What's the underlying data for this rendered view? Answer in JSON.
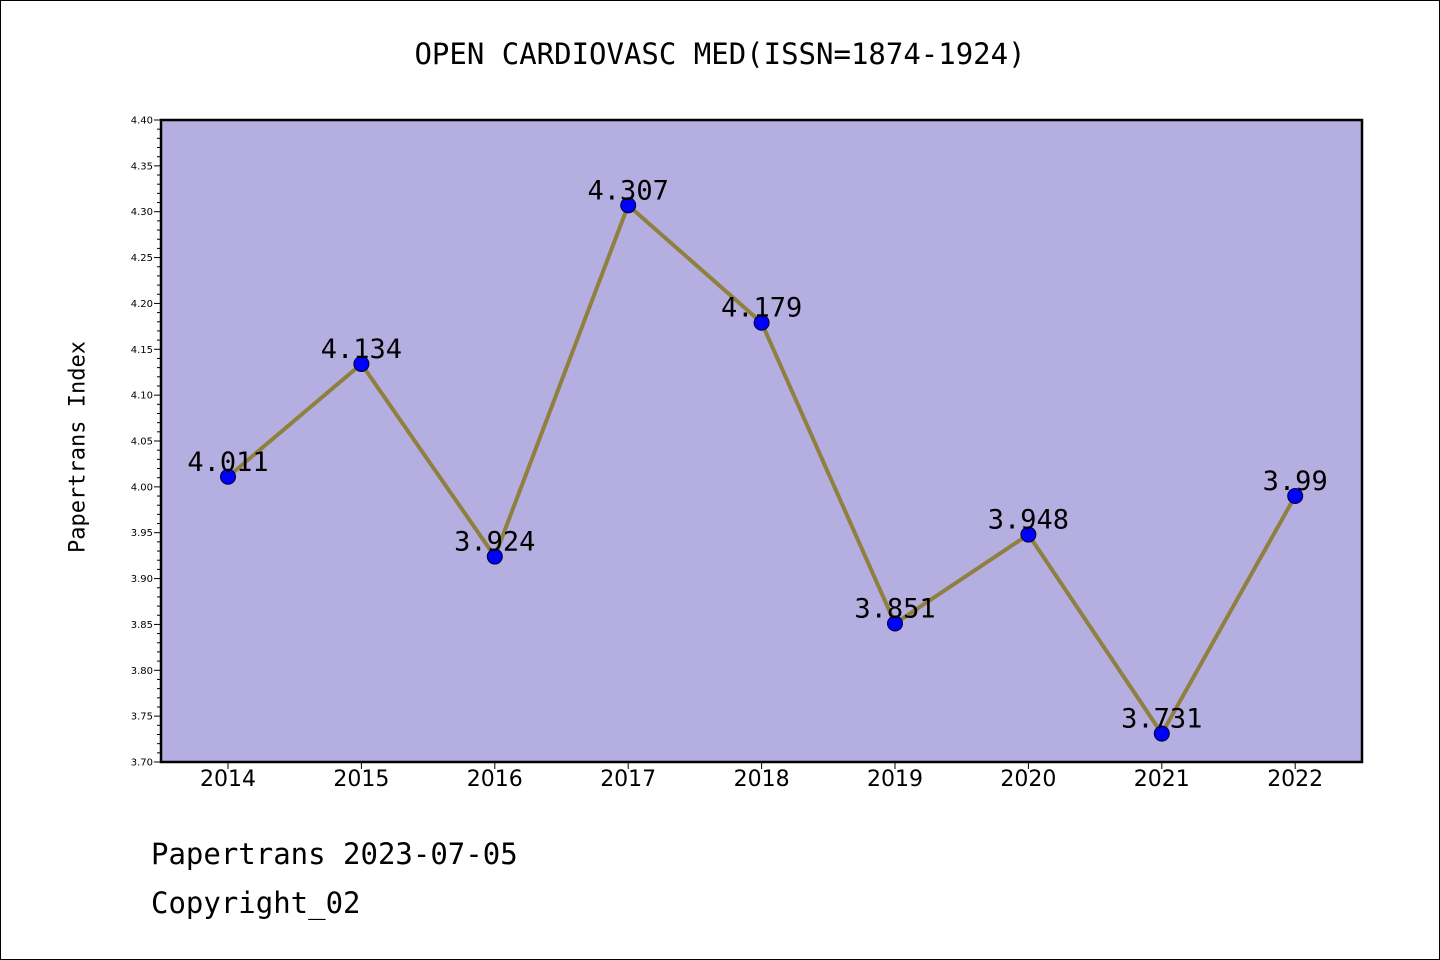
{
  "chart_data": {
    "type": "line",
    "title": "OPEN CARDIOVASC MED(ISSN=1874-1924)",
    "xlabel": "",
    "ylabel": "Papertrans Index",
    "categories": [
      "2014",
      "2015",
      "2016",
      "2017",
      "2018",
      "2019",
      "2020",
      "2021",
      "2022"
    ],
    "series": [
      {
        "values": [
          4.011,
          4.134,
          3.924,
          4.307,
          4.179,
          3.851,
          3.948,
          3.731,
          3.99
        ],
        "labels": [
          "4.011",
          "4.134",
          "3.924",
          "4.307",
          "4.179",
          "3.851",
          "3.948",
          "3.731",
          "3.99"
        ]
      }
    ],
    "ylim": [
      3.7,
      4.4
    ],
    "yticks": [
      "3.70",
      "3.75",
      "3.80",
      "3.85",
      "3.90",
      "3.95",
      "4.00",
      "4.05",
      "4.10",
      "4.15",
      "4.20",
      "4.25",
      "4.30",
      "4.35",
      "4.40"
    ],
    "grid": false,
    "legend": "none",
    "colors": {
      "plot_background": "#b5aee0",
      "line": "#8f8040",
      "marker": "#0000ff"
    }
  },
  "footer": {
    "date_line": "Papertrans 2023-07-05",
    "copyright_line": "Copyright_02"
  }
}
